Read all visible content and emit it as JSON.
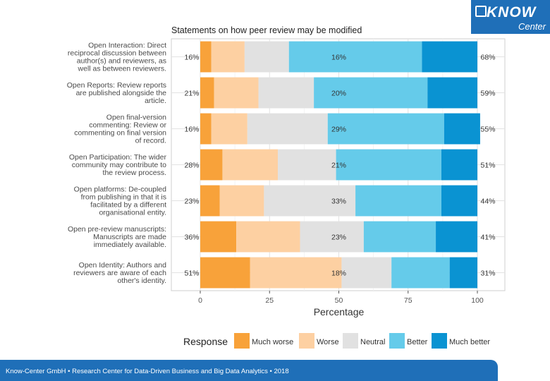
{
  "branding": {
    "logo_top": "KNOW",
    "logo_bottom": "Center",
    "footer": "Know-Center GmbH • Research Center for Data-Driven Business and Big Data Analytics • 2018"
  },
  "chart_data": {
    "type": "bar",
    "orientation": "horizontal",
    "stacked": true,
    "title": "Statements on how peer review may be modified",
    "xlabel": "Percentage",
    "ylabel": "",
    "xlim": [
      0,
      100
    ],
    "xticks": [
      0,
      25,
      50,
      75,
      100
    ],
    "grid": true,
    "legend_title": "Response",
    "legend_position": "bottom",
    "categories": [
      [
        "Open Interaction: Direct",
        "reciprocal discussion between",
        "author(s) and reviewers, as",
        "well as between reviewers."
      ],
      [
        "Open Reports: Review reports",
        "are published alongside the",
        "article."
      ],
      [
        "Open final-version",
        "commenting: Review or",
        "commenting on final version",
        "of record."
      ],
      [
        "Open Participation: The wider",
        "community may contribute to",
        "the review process."
      ],
      [
        "Open platforms: De-coupled",
        "from publishing in that it is",
        "facilitated by a different",
        "organisational entity."
      ],
      [
        "Open pre-review manuscripts:",
        "Manuscripts are made",
        "immediately available."
      ],
      [
        "Open Identity: Authors and",
        "reviewers are aware of each",
        "other's identity."
      ]
    ],
    "series": [
      {
        "name": "Much worse",
        "color": "#f8a23a",
        "values": [
          4,
          5,
          4,
          8,
          7,
          13,
          18
        ]
      },
      {
        "name": "Worse",
        "color": "#fdd0a2",
        "values": [
          12,
          16,
          13,
          20,
          16,
          23,
          33
        ]
      },
      {
        "name": "Neutral",
        "color": "#e1e1e1",
        "values": [
          16,
          20,
          29,
          21,
          33,
          23,
          18
        ]
      },
      {
        "name": "Better",
        "color": "#65cbea",
        "values": [
          48,
          41,
          42,
          38,
          31,
          26,
          21
        ]
      },
      {
        "name": "Much better",
        "color": "#0a93d2",
        "values": [
          20,
          18,
          13,
          13,
          13,
          15,
          10
        ]
      }
    ],
    "labels_left": [
      "16%",
      "21%",
      "16%",
      "28%",
      "23%",
      "36%",
      "51%"
    ],
    "labels_center": [
      "16%",
      "20%",
      "29%",
      "21%",
      "33%",
      "23%",
      "18%"
    ],
    "labels_right": [
      "68%",
      "59%",
      "55%",
      "51%",
      "44%",
      "41%",
      "31%"
    ]
  }
}
